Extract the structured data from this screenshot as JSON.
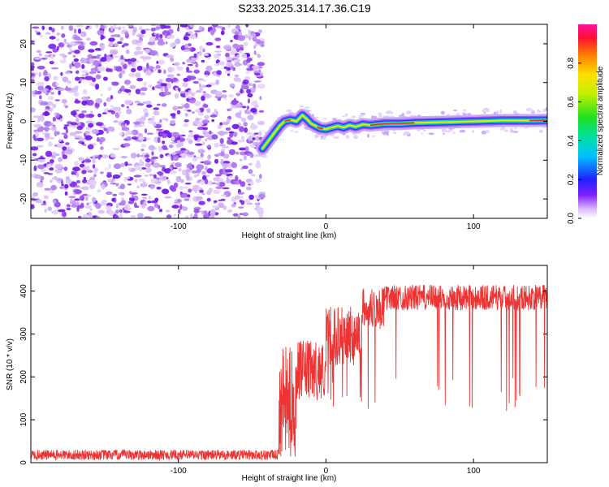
{
  "title": "S233.2025.314.17.36.C19",
  "colors": {
    "signal": "#ee3333",
    "frame": "#000000"
  },
  "chart_data": [
    {
      "type": "heatmap",
      "xlabel": "Height of straight line (km)",
      "ylabel": "Frequency (Hz)",
      "xlim": [
        -200,
        150
      ],
      "ylim": [
        -25,
        25
      ],
      "xticks": [
        -100,
        0,
        100
      ],
      "xtick_labels": [
        "-100",
        "0",
        "100"
      ],
      "yticks": [
        -20,
        -10,
        0,
        10,
        20
      ],
      "ytick_labels": [
        "-20",
        "-10",
        "0",
        "10",
        "20"
      ],
      "noise_region_x": [
        -200,
        -43
      ],
      "signal_trace": {
        "x": [
          -43,
          -40,
          -37,
          -34,
          -31,
          -28,
          -24,
          -20,
          -16,
          -13,
          -10,
          -7,
          -4,
          0,
          4,
          8,
          12,
          16,
          20,
          25,
          30,
          40,
          50,
          60,
          80,
          100,
          120,
          140,
          150
        ],
        "y": [
          -7,
          -5.5,
          -4,
          -2.5,
          -1,
          0,
          0.4,
          0,
          1.6,
          0.6,
          -0.6,
          -1.2,
          -1.8,
          -2,
          -1.6,
          -1.2,
          -1.6,
          -1,
          -1.4,
          -0.8,
          -1,
          -0.6,
          -0.6,
          -0.4,
          -0.2,
          0,
          0.2,
          0.2,
          0.3
        ]
      },
      "colorbar": {
        "label": "Normalized spectral amplitude",
        "range": [
          0,
          1
        ],
        "ticks": [
          0.0,
          0.2,
          0.4,
          0.6,
          0.8
        ],
        "tick_labels": [
          "0.0",
          "0.2",
          "0.4",
          "0.6",
          "0.8"
        ]
      }
    },
    {
      "type": "line",
      "xlabel": "Height of straight line (km)",
      "ylabel": "SNR (10 * v/v)",
      "xlim": [
        -200,
        150
      ],
      "ylim": [
        0,
        460
      ],
      "xticks": [
        -100,
        0,
        100
      ],
      "xtick_labels": [
        "-100",
        "0",
        "100"
      ],
      "yticks": [
        0,
        100,
        200,
        300,
        400
      ],
      "ytick_labels": [
        "0",
        "100",
        "200",
        "300",
        "400"
      ],
      "series": [
        {
          "name": "SNR",
          "segments": [
            {
              "x_range": [
                -200,
                -32
              ],
              "baseline": 18,
              "noise": 12
            },
            {
              "x_range": [
                -32,
                -20
              ],
              "baseline": 140,
              "noise": 130
            },
            {
              "x_range": [
                -20,
                0
              ],
              "baseline": 215,
              "noise": 70
            },
            {
              "x_range": [
                0,
                25
              ],
              "baseline": 295,
              "noise": 70
            },
            {
              "x_range": [
                25,
                40
              ],
              "baseline": 360,
              "noise": 50
            },
            {
              "x_range": [
                40,
                150
              ],
              "baseline": 385,
              "noise": 30,
              "dropout_floor": 120
            }
          ]
        }
      ]
    }
  ]
}
